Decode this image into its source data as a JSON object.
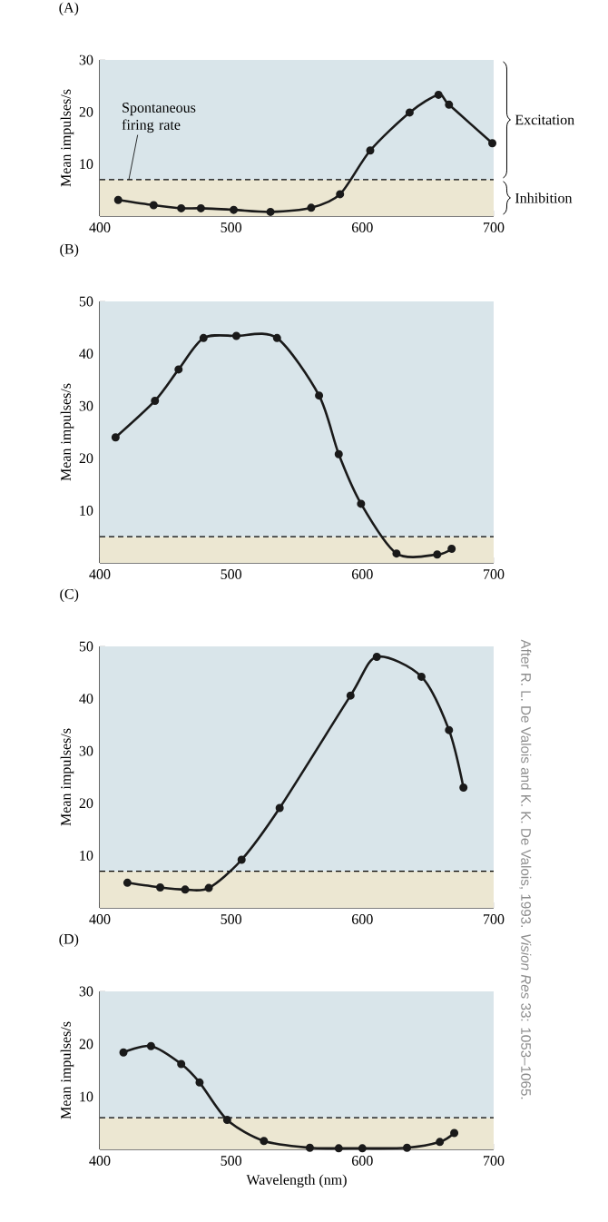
{
  "chart_data": [
    {
      "type": "line",
      "title": "(A)",
      "ylabel": "Mean impulses/s",
      "color": "#1a1a1a",
      "marker": "circle",
      "line_style": "solid",
      "x": [
        414,
        441,
        462,
        477,
        502,
        530,
        561,
        583,
        606,
        636,
        658,
        666,
        699
      ],
      "values": [
        3.1,
        2.1,
        1.5,
        1.5,
        1.2,
        0.8,
        1.6,
        4.2,
        12.6,
        19.9,
        23.3,
        21.4,
        14
      ],
      "xlim": [
        400,
        700
      ],
      "ylim": [
        0,
        30
      ],
      "xticks": [
        400,
        500,
        600,
        700
      ],
      "yticks": [
        10,
        20,
        30
      ],
      "bands": [
        {
          "axis": "y",
          "from": 0,
          "to": 7,
          "label": "Inhibition",
          "color": "#ece7d2"
        },
        {
          "axis": "y",
          "from": 7,
          "to": 30,
          "label": "Excitation",
          "color": "#d9e5ea"
        }
      ],
      "ref_lines": [
        {
          "axis": "y",
          "value": 7,
          "label": "Spontaneous firing rate",
          "line_style": "dashed"
        }
      ]
    },
    {
      "type": "line",
      "title": "(B)",
      "ylabel": "Mean impulses/s",
      "color": "#1a1a1a",
      "marker": "circle",
      "line_style": "solid",
      "x": [
        412,
        442,
        460,
        479,
        504,
        535,
        567,
        582,
        599,
        626,
        657,
        668
      ],
      "values": [
        24,
        31,
        37,
        43,
        43.4,
        43,
        32,
        20.8,
        11.3,
        1.8,
        1.6,
        2.7
      ],
      "xlim": [
        400,
        700
      ],
      "ylim": [
        0,
        50
      ],
      "xticks": [
        400,
        500,
        600,
        700
      ],
      "yticks": [
        10,
        20,
        30,
        40,
        50
      ],
      "bands": [
        {
          "axis": "y",
          "from": 0,
          "to": 5,
          "color": "#ece7d2"
        },
        {
          "axis": "y",
          "from": 5,
          "to": 50,
          "color": "#d9e5ea"
        }
      ],
      "ref_lines": [
        {
          "axis": "y",
          "value": 5,
          "line_style": "dashed"
        }
      ]
    },
    {
      "type": "line",
      "title": "(C)",
      "ylabel": "Mean impulses/s",
      "color": "#1a1a1a",
      "marker": "circle",
      "line_style": "solid",
      "x": [
        421,
        446,
        465,
        483,
        508,
        537,
        591,
        611,
        645,
        666,
        677
      ],
      "values": [
        4.8,
        3.9,
        3.5,
        3.8,
        9.2,
        19.1,
        40.6,
        48,
        44.2,
        34,
        23
      ],
      "xlim": [
        400,
        700
      ],
      "ylim": [
        0,
        50
      ],
      "xticks": [
        400,
        500,
        600,
        700
      ],
      "yticks": [
        10,
        20,
        30,
        40,
        50
      ],
      "bands": [
        {
          "axis": "y",
          "from": 0,
          "to": 7,
          "color": "#ece7d2"
        },
        {
          "axis": "y",
          "from": 7,
          "to": 50,
          "color": "#d9e5ea"
        }
      ],
      "ref_lines": [
        {
          "axis": "y",
          "value": 7,
          "line_style": "dashed"
        }
      ],
      "annotations": [
        "After R. L. De Valois and K. K. De Valois, 1993. *Vision Res* 33: 1053–1065."
      ]
    },
    {
      "type": "line",
      "title": "(D)",
      "xlabel": "Wavelength (nm)",
      "ylabel": "Mean impulses/s",
      "color": "#1a1a1a",
      "marker": "circle",
      "line_style": "solid",
      "x": [
        418,
        439,
        462,
        476,
        497,
        525,
        560,
        582,
        600,
        634,
        659,
        670
      ],
      "values": [
        18.4,
        19.6,
        16.2,
        12.7,
        5.6,
        1.6,
        0.3,
        0.2,
        0.2,
        0.3,
        1.4,
        3.1
      ],
      "xlim": [
        400,
        700
      ],
      "ylim": [
        0,
        30
      ],
      "xticks": [
        400,
        500,
        600,
        700
      ],
      "yticks": [
        10,
        20,
        30
      ],
      "bands": [
        {
          "axis": "y",
          "from": 0,
          "to": 6,
          "color": "#ece7d2"
        },
        {
          "axis": "y",
          "from": 6,
          "to": 30,
          "color": "#d9e5ea"
        }
      ],
      "ref_lines": [
        {
          "axis": "y",
          "value": 6,
          "line_style": "dashed"
        }
      ]
    }
  ]
}
